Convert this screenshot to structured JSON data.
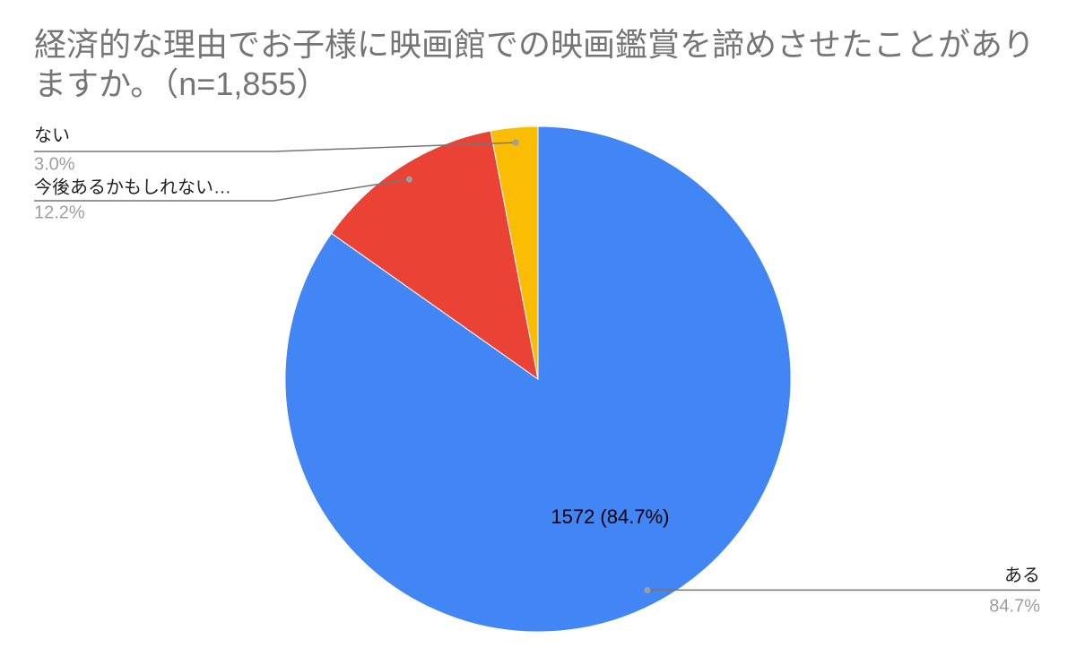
{
  "chart_data": {
    "type": "pie",
    "title": "経済的な理由でお子様に映画館での映画鑑賞を諦めさせたことがありますか。（n=1,855）",
    "categories": [
      "ある",
      "今後あるかもしれない…",
      "ない"
    ],
    "values": [
      84.7,
      12.2,
      3.0
    ],
    "value_labels": [
      "84.7%",
      "12.2%",
      "3.0%"
    ],
    "data_labels": [
      "1572 (84.7%)",
      null,
      null
    ],
    "colors": [
      "#4285f4",
      "#ea4335",
      "#fbbc04"
    ]
  }
}
